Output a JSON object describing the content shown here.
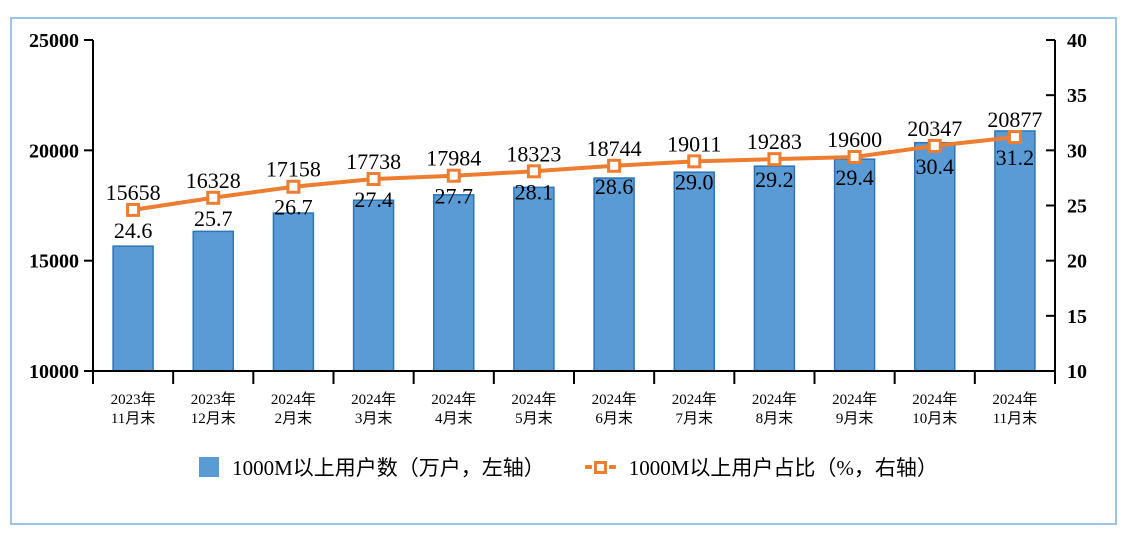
{
  "chart_data": {
    "type": "combo-bar-line",
    "categories": [
      [
        "2023年",
        "11月末"
      ],
      [
        "2023年",
        "12月末"
      ],
      [
        "2024年",
        "2月末"
      ],
      [
        "2024年",
        "3月末"
      ],
      [
        "2024年",
        "4月末"
      ],
      [
        "2024年",
        "5月末"
      ],
      [
        "2024年",
        "6月末"
      ],
      [
        "2024年",
        "7月末"
      ],
      [
        "2024年",
        "8月末"
      ],
      [
        "2024年",
        "9月末"
      ],
      [
        "2024年",
        "10月末"
      ],
      [
        "2024年",
        "11月末"
      ]
    ],
    "series": [
      {
        "name": "1000M以上用户数（万户，左轴）",
        "type": "bar",
        "axis": "left",
        "values": [
          15658,
          16328,
          17158,
          17738,
          17984,
          18323,
          18744,
          19011,
          19283,
          19600,
          20347,
          20877
        ],
        "fill": "#5B9BD5",
        "stroke": "#2E75B6"
      },
      {
        "name": "1000M以上用户占比（%，右轴）",
        "type": "line",
        "axis": "right",
        "values": [
          24.6,
          25.7,
          26.7,
          27.4,
          27.7,
          28.1,
          28.6,
          29.0,
          29.2,
          29.4,
          30.4,
          31.2
        ],
        "color": "#ED7D31",
        "marker": "square",
        "label_decimals": 1
      }
    ],
    "left_axis": {
      "min": 10000,
      "max": 25000,
      "ticks": [
        25000,
        20000,
        15000,
        10000
      ]
    },
    "right_axis": {
      "min": 10,
      "max": 40,
      "ticks": [
        40,
        35,
        30,
        25,
        20,
        15,
        10
      ]
    },
    "grid": false,
    "legend_position": "bottom",
    "title": "",
    "xlabel": "",
    "ylabel": ""
  },
  "style": {
    "frame_color": "#9DC3E6",
    "axis_color": "#000000",
    "text_color": "#000000"
  }
}
